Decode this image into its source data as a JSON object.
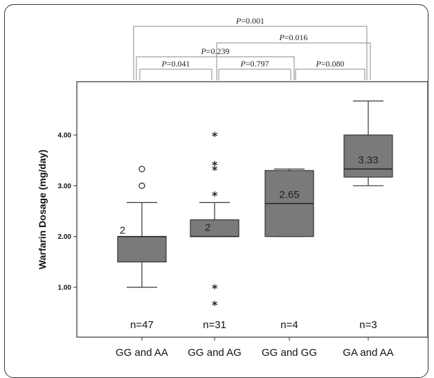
{
  "chart_data": {
    "type": "box",
    "ylabel": "Warfarin Dosage (mg/day)",
    "xlabel": "",
    "ylim": [
      0.55,
      5.0
    ],
    "y_ticks": [
      "1.00",
      "2.00",
      "3.00",
      "4.00"
    ],
    "categories": [
      "GG and AA",
      "GG and AG",
      "GG and GG",
      "GA and AA"
    ],
    "boxes": [
      {
        "category": "GG and AA",
        "n_label": "n=47",
        "median_label": "2",
        "whisker_low": 1.0,
        "q1": 1.5,
        "median": 2.0,
        "q3": 2.0,
        "whisker_high": 2.67,
        "outliers_circle": [
          3.0,
          3.33
        ],
        "outliers_star": []
      },
      {
        "category": "GG and AG",
        "n_label": "n=31",
        "median_label": "2",
        "whisker_low": 2.0,
        "q1": 2.0,
        "median": 2.0,
        "q3": 2.33,
        "whisker_high": 2.67,
        "outliers_circle": [],
        "outliers_star": [
          0.67,
          1.0,
          2.83,
          3.33,
          3.43,
          4.0
        ]
      },
      {
        "category": "GG and GG",
        "n_label": "n=4",
        "median_label": "2.65",
        "whisker_low": 2.0,
        "q1": 2.0,
        "median": 2.65,
        "q3": 3.3,
        "whisker_high": 3.33,
        "outliers_circle": [],
        "outliers_star": []
      },
      {
        "category": "GA and AA",
        "n_label": "n=3",
        "median_label": "3.33",
        "whisker_low": 3.0,
        "q1": 3.17,
        "median": 3.33,
        "q3": 4.0,
        "whisker_high": 4.67,
        "outliers_circle": [],
        "outliers_star": []
      }
    ],
    "comparisons": [
      {
        "from": 0,
        "to": 3,
        "p_label": "0.001"
      },
      {
        "from": 1,
        "to": 3,
        "p_label": "0.016"
      },
      {
        "from": 0,
        "to": 2,
        "p_label": "0.239"
      },
      {
        "from": 0,
        "to": 1,
        "p_label": "0.041"
      },
      {
        "from": 1,
        "to": 2,
        "p_label": "0.797"
      },
      {
        "from": 2,
        "to": 3,
        "p_label": "0.080"
      }
    ],
    "p_prefix": "P",
    "colors": {
      "box_fill": "#7a7a7a",
      "line": "#333333"
    }
  }
}
